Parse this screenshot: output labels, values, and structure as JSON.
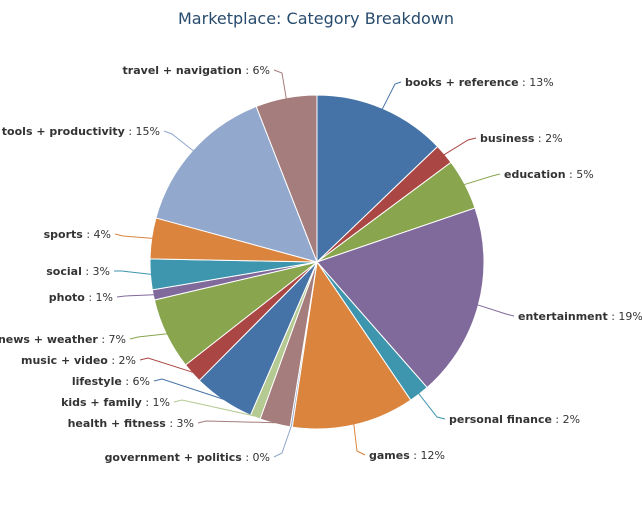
{
  "chart_data": {
    "type": "pie",
    "title": "Marketplace: Category Breakdown",
    "slices": [
      {
        "name": "books + reference",
        "value": 13,
        "label": "13%",
        "color": "#4572a7"
      },
      {
        "name": "business",
        "value": 2,
        "label": "2%",
        "color": "#aa4643"
      },
      {
        "name": "education",
        "value": 5,
        "label": "5%",
        "color": "#89a54e"
      },
      {
        "name": "entertainment",
        "value": 19,
        "label": "19%",
        "color": "#80699b"
      },
      {
        "name": "personal finance",
        "value": 2,
        "label": "2%",
        "color": "#3d96ae"
      },
      {
        "name": "games",
        "value": 12,
        "label": "12%",
        "color": "#db843d"
      },
      {
        "name": "government + politics",
        "value": 0.2,
        "label": "0%",
        "color": "#92a8cd"
      },
      {
        "name": "health + fitness",
        "value": 3,
        "label": "3%",
        "color": "#a47d7c"
      },
      {
        "name": "kids + family",
        "value": 1,
        "label": "1%",
        "color": "#b5ca92"
      },
      {
        "name": "lifestyle",
        "value": 6,
        "label": "6%",
        "color": "#4572a7"
      },
      {
        "name": "music + video",
        "value": 2,
        "label": "2%",
        "color": "#aa4643"
      },
      {
        "name": "news + weather",
        "value": 7,
        "label": "7%",
        "color": "#89a54e"
      },
      {
        "name": "photo",
        "value": 1,
        "label": "1%",
        "color": "#80699b"
      },
      {
        "name": "social",
        "value": 3,
        "label": "3%",
        "color": "#3d96ae"
      },
      {
        "name": "sports",
        "value": 4,
        "label": "4%",
        "color": "#db843d"
      },
      {
        "name": "tools + productivity",
        "value": 15,
        "label": "15%",
        "color": "#92a8cd"
      },
      {
        "name": "travel + navigation",
        "value": 6,
        "label": "6%",
        "color": "#a47d7c"
      }
    ]
  }
}
